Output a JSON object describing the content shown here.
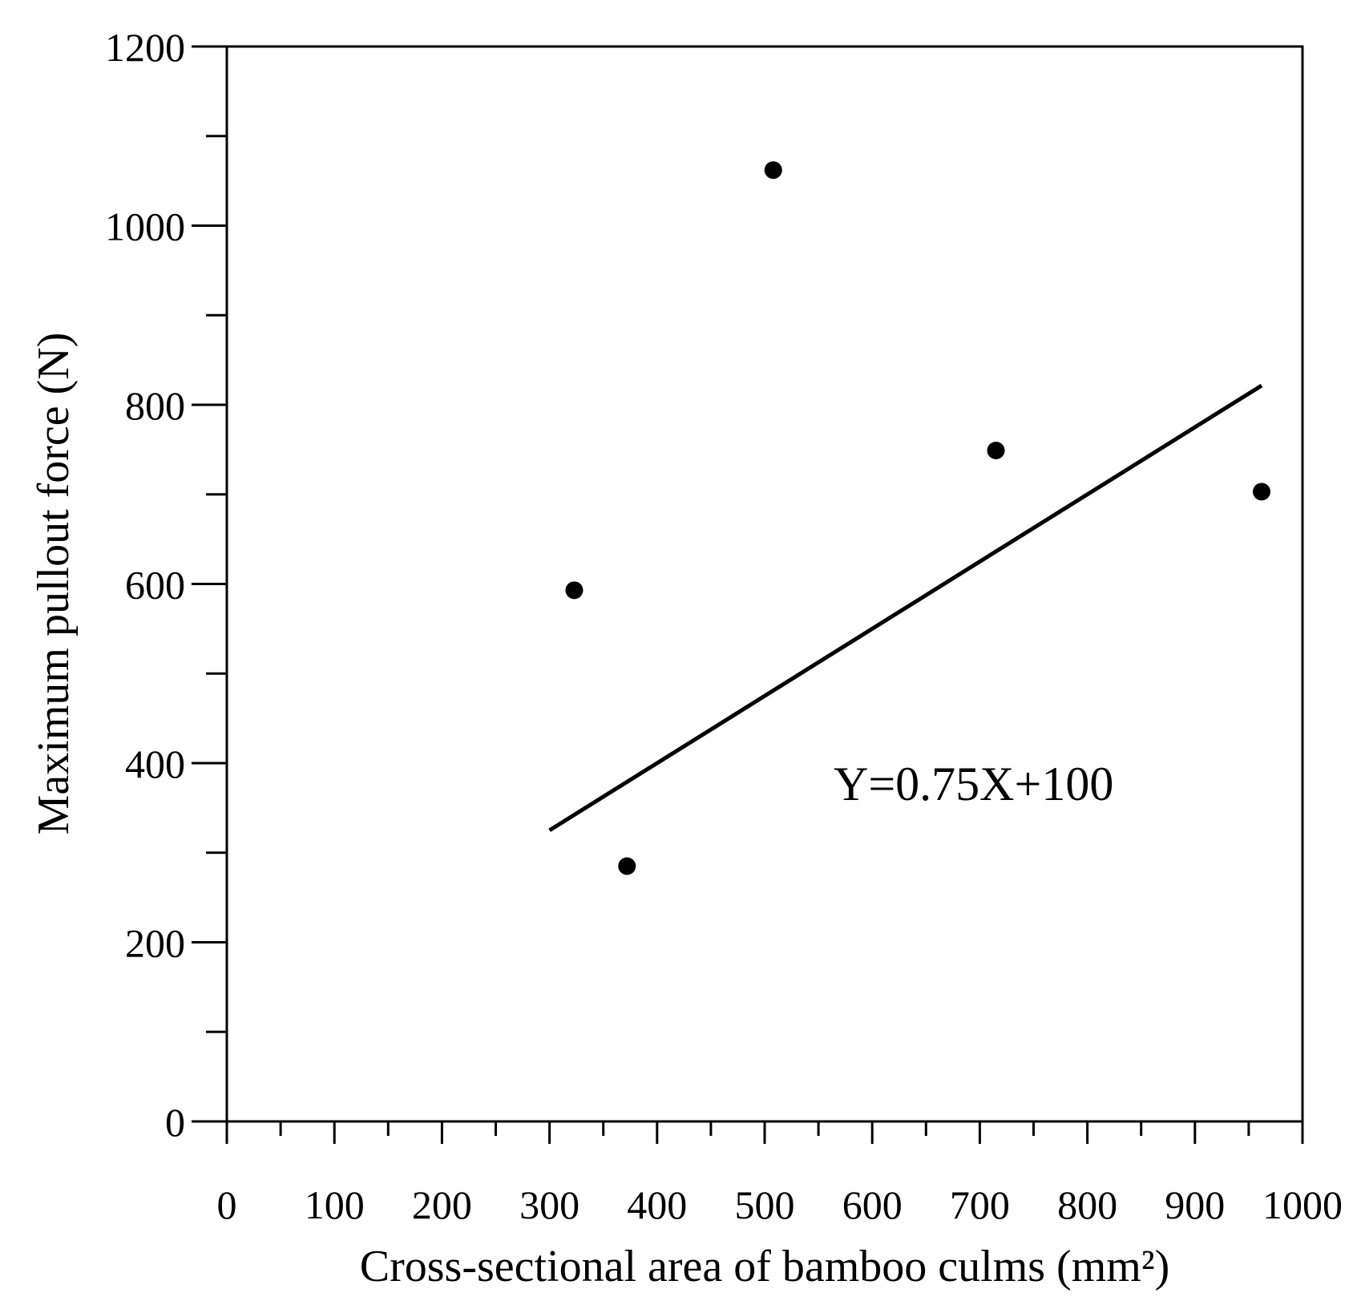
{
  "chart_data": {
    "type": "scatter",
    "xlabel": "Cross-sectional area of bamboo culms (mm²)",
    "ylabel": "Maximum pullout force (N)",
    "xlim": [
      0,
      1000
    ],
    "ylim": [
      0,
      1200
    ],
    "x_ticks": [
      0,
      100,
      200,
      300,
      400,
      500,
      600,
      700,
      800,
      900,
      1000
    ],
    "y_ticks": [
      0,
      200,
      400,
      600,
      800,
      1000,
      1200
    ],
    "x_minor_step": 50,
    "y_minor_step": 100,
    "grid": false,
    "series": [
      {
        "points": [
          {
            "x": 323,
            "y": 593
          },
          {
            "x": 372,
            "y": 285
          },
          {
            "x": 508,
            "y": 1062
          },
          {
            "x": 715,
            "y": 749
          },
          {
            "x": 962,
            "y": 703
          }
        ]
      }
    ],
    "fit_line": {
      "slope": 0.75,
      "intercept": 100,
      "x_range": [
        300,
        962
      ]
    },
    "annotation": "Y=0.75X+100"
  }
}
